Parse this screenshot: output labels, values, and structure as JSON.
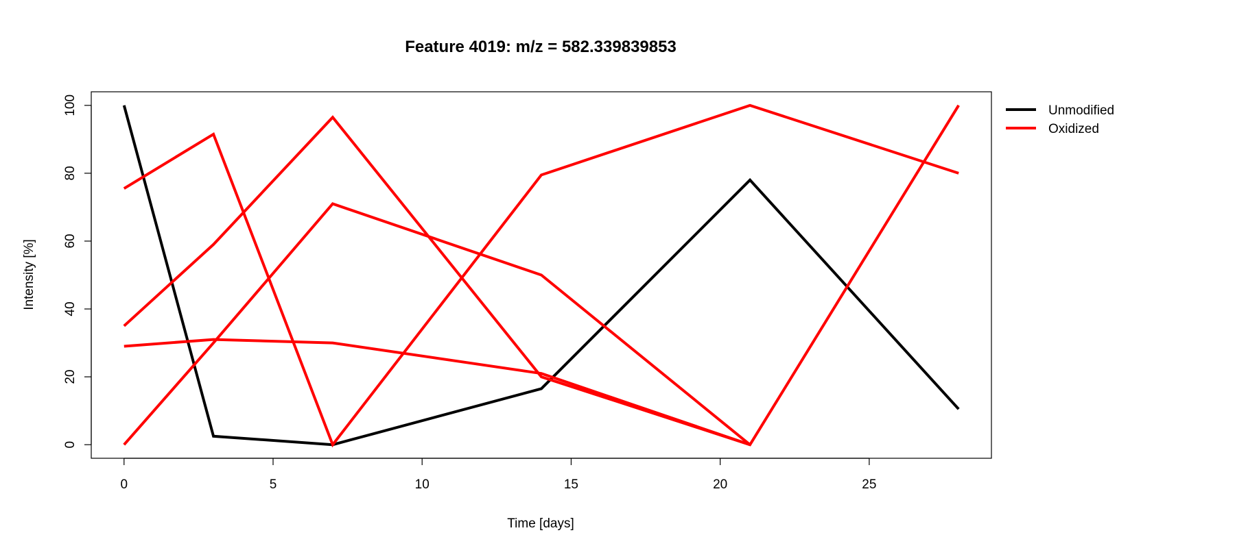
{
  "chart_data": {
    "type": "line",
    "title": "Feature 4019: m/z = 582.339839853",
    "xlabel": "Time [days]",
    "ylabel": "Intensity [%]",
    "x": [
      0,
      3,
      7,
      14,
      21,
      28
    ],
    "xlim": [
      -1.1,
      29.1
    ],
    "ylim": [
      -4,
      104
    ],
    "xticks": [
      0,
      5,
      10,
      15,
      20,
      25
    ],
    "yticks": [
      0,
      20,
      40,
      60,
      80,
      100
    ],
    "grid": false,
    "legend": {
      "position": "top-right, outside plot",
      "entries": [
        {
          "label": "Unmodified",
          "color": "#000000"
        },
        {
          "label": "Oxidized",
          "color": "#ff0000"
        }
      ]
    },
    "series": [
      {
        "group": "Unmodified",
        "color": "#000000",
        "values": [
          100,
          2.5,
          0,
          16.5,
          78,
          10.5
        ]
      },
      {
        "group": "Oxidized",
        "color": "#ff0000",
        "values": [
          75.5,
          91.5,
          0,
          79.5,
          100,
          80
        ]
      },
      {
        "group": "Oxidized",
        "color": "#ff0000",
        "values": [
          35,
          59,
          96.5,
          20,
          0,
          100
        ]
      },
      {
        "group": "Oxidized",
        "color": "#ff0000",
        "values": [
          0,
          30,
          71,
          50,
          0,
          null
        ]
      },
      {
        "group": "Oxidized",
        "color": "#ff0000",
        "values": [
          29,
          31,
          30,
          21,
          0,
          null
        ]
      }
    ]
  }
}
